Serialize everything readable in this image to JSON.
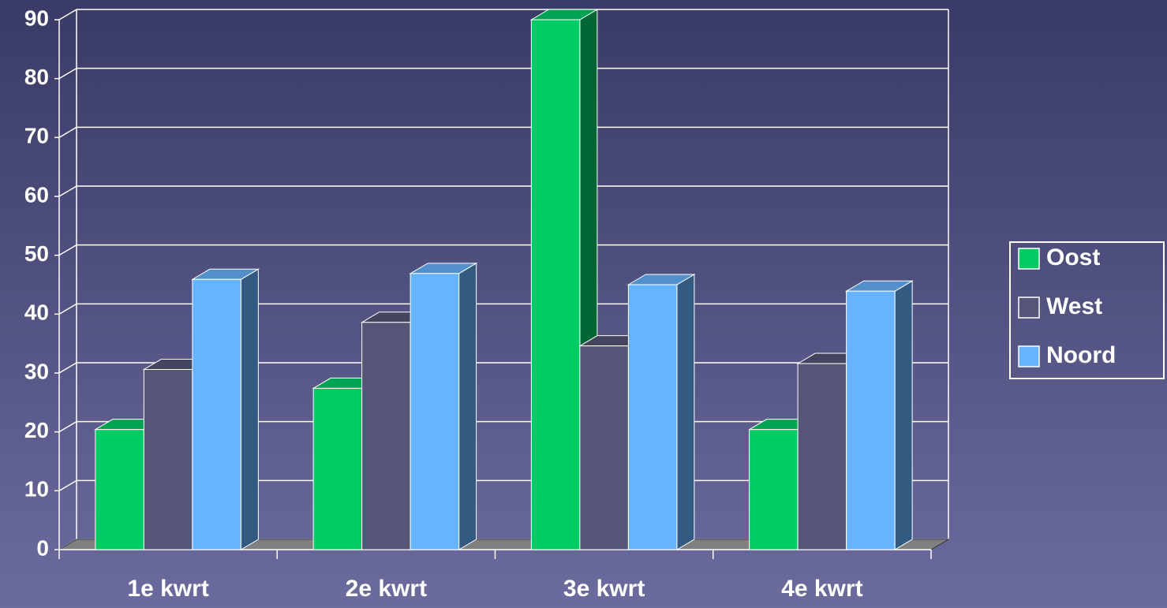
{
  "chart_data": {
    "type": "bar3d",
    "categories": [
      "1e kwrt",
      "2e kwrt",
      "3e kwrt",
      "4e kwrt"
    ],
    "series": [
      {
        "name": "Oost",
        "color": "#00cc66",
        "values": [
          20.4,
          27.4,
          90,
          20.4
        ]
      },
      {
        "name": "West",
        "color": "#555577",
        "values": [
          30.6,
          38.6,
          34.6,
          31.6
        ]
      },
      {
        "name": "Noord",
        "color": "#66b3ff",
        "values": [
          45.9,
          46.9,
          45,
          43.9
        ]
      }
    ],
    "ylim": [
      0,
      90
    ],
    "yticks": [
      0,
      10,
      20,
      30,
      40,
      50,
      60,
      70,
      80,
      90
    ],
    "grid": true,
    "legend": "right"
  }
}
